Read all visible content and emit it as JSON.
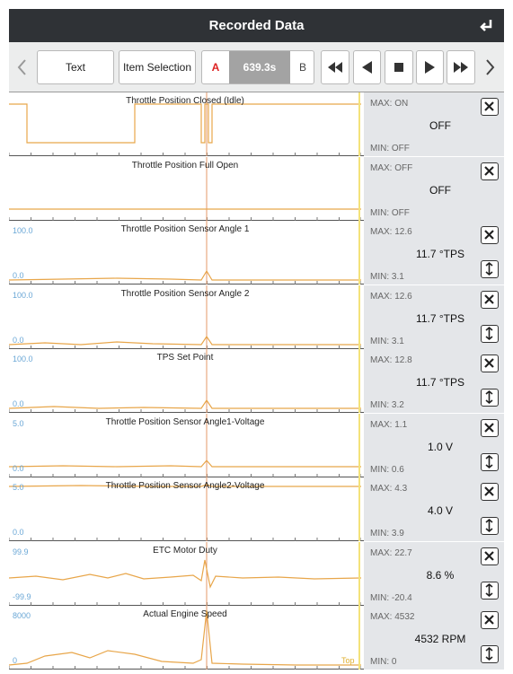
{
  "header": {
    "title": "Recorded Data"
  },
  "toolbar": {
    "tabs": [
      "Text",
      "Item Selection"
    ],
    "marker_a": "A",
    "time": "639.3s",
    "marker_b": "B"
  },
  "rows": [
    {
      "title": "Throttle Position Closed (Idle)",
      "max": "MAX: ON",
      "value": "OFF",
      "min": "MIN: OFF"
    },
    {
      "title": "Throttle Position Full Open",
      "max": "MAX: OFF",
      "value": "OFF",
      "min": "MIN: OFF"
    },
    {
      "title": "Throttle Position Sensor Angle 1",
      "y_top": "100.0",
      "y_bottom": "0.0",
      "max": "MAX: 12.6",
      "value": "11.7 °TPS",
      "min": "MIN: 3.1"
    },
    {
      "title": "Throttle Position Sensor Angle 2",
      "y_top": "100.0",
      "y_bottom": "0.0",
      "max": "MAX: 12.6",
      "value": "11.7 °TPS",
      "min": "MIN: 3.1"
    },
    {
      "title": "TPS Set Point",
      "y_top": "100.0",
      "y_bottom": "0.0",
      "max": "MAX: 12.8",
      "value": "11.7 °TPS",
      "min": "MIN: 3.2"
    },
    {
      "title": "Throttle Position Sensor Angle1-Voltage",
      "y_top": "5.0",
      "y_bottom": "0.0",
      "max": "MAX: 1.1",
      "value": "1.0 V",
      "min": "MIN: 0.6"
    },
    {
      "title": "Throttle Position Sensor Angle2-Voltage",
      "y_top": "5.0",
      "y_bottom": "0.0",
      "max": "MAX: 4.3",
      "value": "4.0 V",
      "min": "MIN: 3.9"
    },
    {
      "title": "ETC Motor Duty",
      "y_top": "99.9",
      "y_bottom": "-99.9",
      "max": "MAX: 22.7",
      "value": "8.6 %",
      "min": "MIN: -20.4"
    },
    {
      "title": "Actual Engine Speed",
      "y_top": "8000",
      "y_bottom": "0",
      "max": "MAX: 4532",
      "value": "4532 RPM",
      "min": "MIN: 0",
      "corner_label": "Top"
    }
  ]
}
